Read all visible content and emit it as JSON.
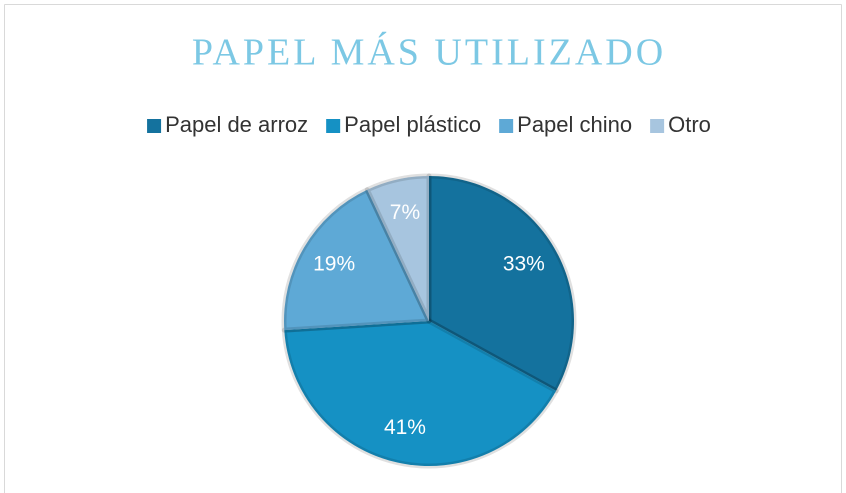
{
  "chart_data": {
    "type": "pie",
    "title": "PAPEL MÁS UTILIZADO",
    "categories": [
      "Papel de arroz",
      "Papel plástico",
      "Papel chino",
      "Otro"
    ],
    "values": [
      33,
      41,
      19,
      7
    ],
    "value_labels": [
      "33%",
      "41%",
      "19%",
      "7%"
    ],
    "colors": [
      "#14729e",
      "#1591c4",
      "#5ea9d6",
      "#a7c5df"
    ],
    "legend": "top"
  }
}
